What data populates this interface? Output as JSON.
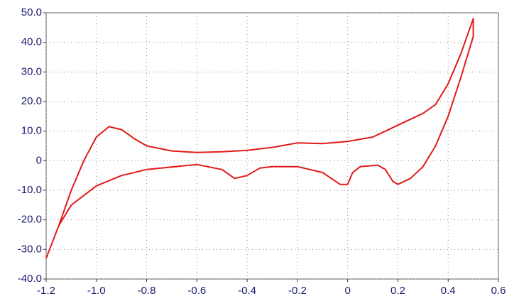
{
  "chart_data": {
    "type": "line",
    "x": [
      -1.2,
      -1.15,
      -1.1,
      -1.05,
      -1.0,
      -0.95,
      -0.9,
      -0.85,
      -0.8,
      -0.7,
      -0.6,
      -0.5,
      -0.4,
      -0.3,
      -0.2,
      -0.1,
      0,
      0.1,
      0.15,
      0.2,
      0.3,
      0.35,
      0.4,
      0.45,
      0.5,
      0.5,
      0.45,
      0.4,
      0.35,
      0.3,
      0.25,
      0.2,
      0.18,
      0.15,
      0.12,
      0.05,
      0.02,
      0,
      -0.03,
      -0.1,
      -0.2,
      -0.3,
      -0.35,
      -0.4,
      -0.45,
      -0.5,
      -0.6,
      -0.8,
      -0.9,
      -1.0,
      -1.1,
      -1.15,
      -1.2
    ],
    "values": [
      -33,
      -22,
      -10,
      0,
      8,
      11.5,
      10.5,
      7.5,
      5,
      3.3,
      2.8,
      3,
      3.5,
      4.5,
      6,
      5.8,
      6.5,
      8,
      10,
      12,
      16,
      19,
      26,
      36,
      48,
      42,
      28,
      15,
      5,
      -2,
      -6,
      -8,
      -7,
      -3,
      -1.5,
      -2,
      -4,
      -8,
      -8,
      -4,
      -2,
      -2,
      -2.5,
      -5,
      -6,
      -3,
      -1.3,
      -3,
      -5,
      -8.5,
      -15,
      -22,
      -33
    ],
    "color": "#e31a1a",
    "xlim": [
      -1.2,
      0.6
    ],
    "ylim": [
      -40,
      50
    ],
    "xticks": [
      -1.2,
      {
        "value": -1.0,
        "label": "-1.0"
      },
      -0.8,
      -0.6,
      -0.4,
      -0.2,
      0,
      0.2,
      0.4,
      0.6
    ],
    "yticks": [
      {
        "value": -40,
        "label": "-40.0"
      },
      {
        "value": -30,
        "label": "-30.0"
      },
      {
        "value": -20,
        "label": "-20.0"
      },
      {
        "value": -10,
        "label": "-10.0"
      },
      0,
      {
        "value": 10,
        "label": "10.0"
      },
      {
        "value": 20,
        "label": "20.0"
      },
      {
        "value": 30,
        "label": "30.0"
      },
      {
        "value": 40,
        "label": "40.0"
      },
      {
        "value": 50,
        "label": "50.0"
      }
    ],
    "grid": true
  }
}
